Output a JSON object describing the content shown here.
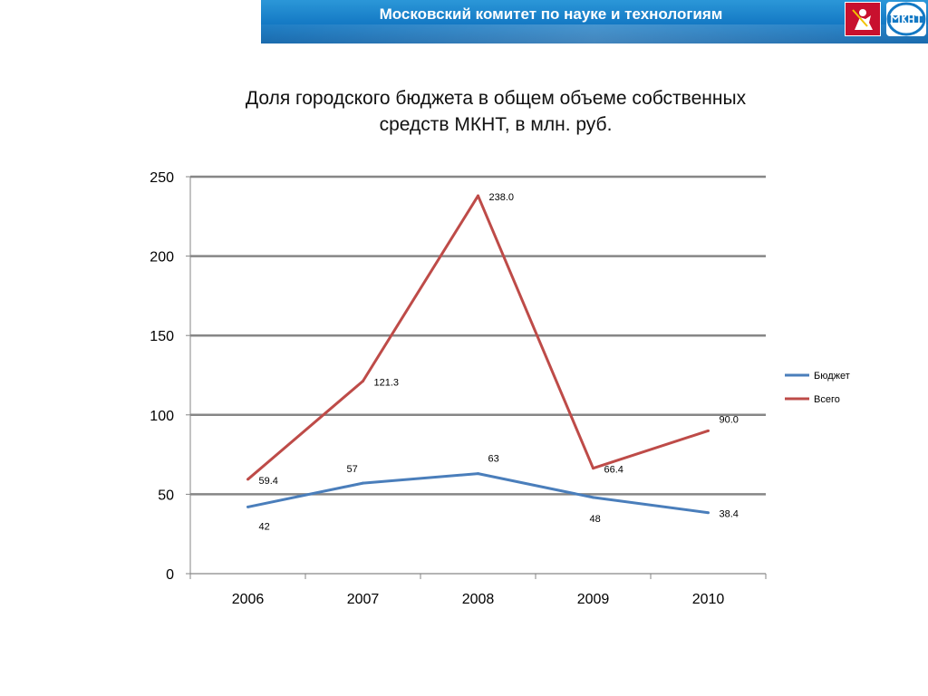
{
  "header": {
    "title": "Московский комитет по науке и технологиям"
  },
  "colors": {
    "header_blue": "#1479c4",
    "grid": "#868686",
    "budget_line": "#4a7ebb",
    "total_line": "#be4b48"
  },
  "chart_data": {
    "type": "line",
    "title": "Доля городского бюджета в общем объеме собственных средств МКНТ, в млн. руб.",
    "title_lines": [
      "Доля городского бюджета в общем объеме собственных",
      "средств МКНТ, в млн. руб."
    ],
    "xlabel": "",
    "ylabel": "",
    "categories": [
      "2006",
      "2007",
      "2008",
      "2009",
      "2010"
    ],
    "ylim": [
      0,
      250
    ],
    "yticks": [
      "0",
      "50",
      "100",
      "150",
      "200",
      "250"
    ],
    "grid": true,
    "legend_position": "right",
    "series": [
      {
        "name": "Бюджет",
        "color": "#4a7ebb",
        "values": [
          42,
          57,
          63,
          48,
          38.4
        ],
        "labels": [
          "42",
          "57",
          "63",
          "48",
          "38.4"
        ]
      },
      {
        "name": "Всего",
        "color": "#be4b48",
        "values": [
          59.4,
          121.3,
          238.0,
          66.4,
          90.0
        ],
        "labels": [
          "59.4",
          "121.3",
          "238.0",
          "66.4",
          "90.0"
        ]
      }
    ]
  }
}
